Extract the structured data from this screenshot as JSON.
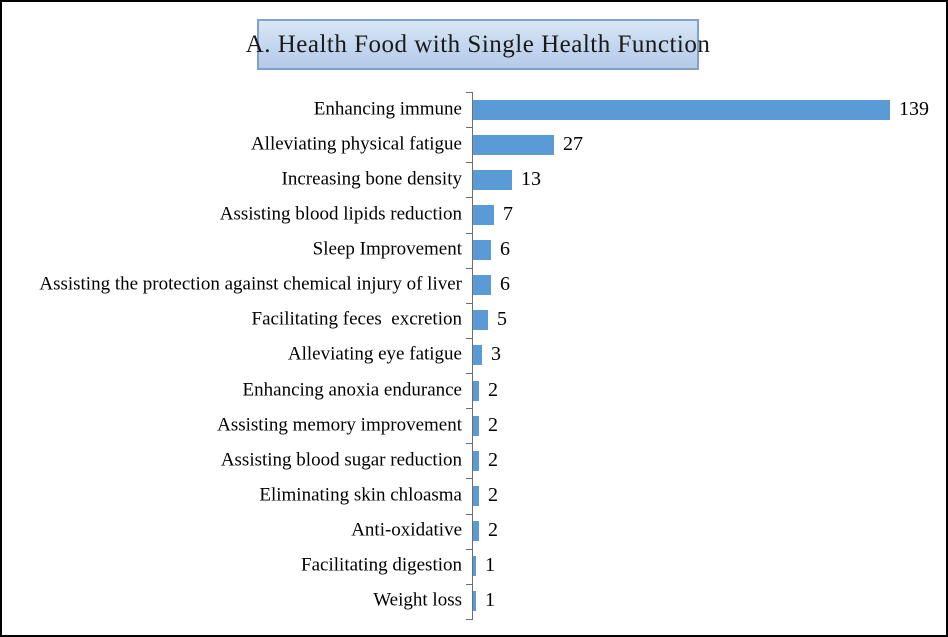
{
  "header": {
    "title": "A. Health Food with Single Health Function"
  },
  "chart_data": {
    "type": "bar",
    "orientation": "horizontal",
    "title": "A. Health Food with Single Health Function",
    "categories": [
      "Enhancing immune",
      "Alleviating physical fatigue",
      "Increasing bone density",
      "Assisting blood lipids reduction",
      "Sleep Improvement",
      "Assisting the protection against chemical injury of liver",
      "Facilitating feces  excretion",
      "Alleviating eye fatigue",
      "Enhancing anoxia endurance",
      "Assisting memory improvement",
      "Assisting blood sugar reduction",
      "Eliminating skin chloasma",
      "Anti-oxidative",
      "Facilitating digestion",
      "Weight loss"
    ],
    "values": [
      139,
      27,
      13,
      7,
      6,
      6,
      5,
      3,
      2,
      2,
      2,
      2,
      2,
      1,
      1
    ],
    "data_labels": [
      "139",
      "27",
      "13",
      "7",
      "6",
      "6",
      "5",
      "3",
      "2",
      "2",
      "2",
      "2",
      "2",
      "1",
      "1"
    ],
    "xlabel": "",
    "ylabel": "",
    "xlim": [
      0,
      139
    ],
    "grid": false,
    "legend": false,
    "bar_color": "#5B9BD5",
    "axis_color": "#6E6E6E",
    "title_box_bg": "#C3D6EE",
    "title_box_border": "#7FA1CB"
  }
}
